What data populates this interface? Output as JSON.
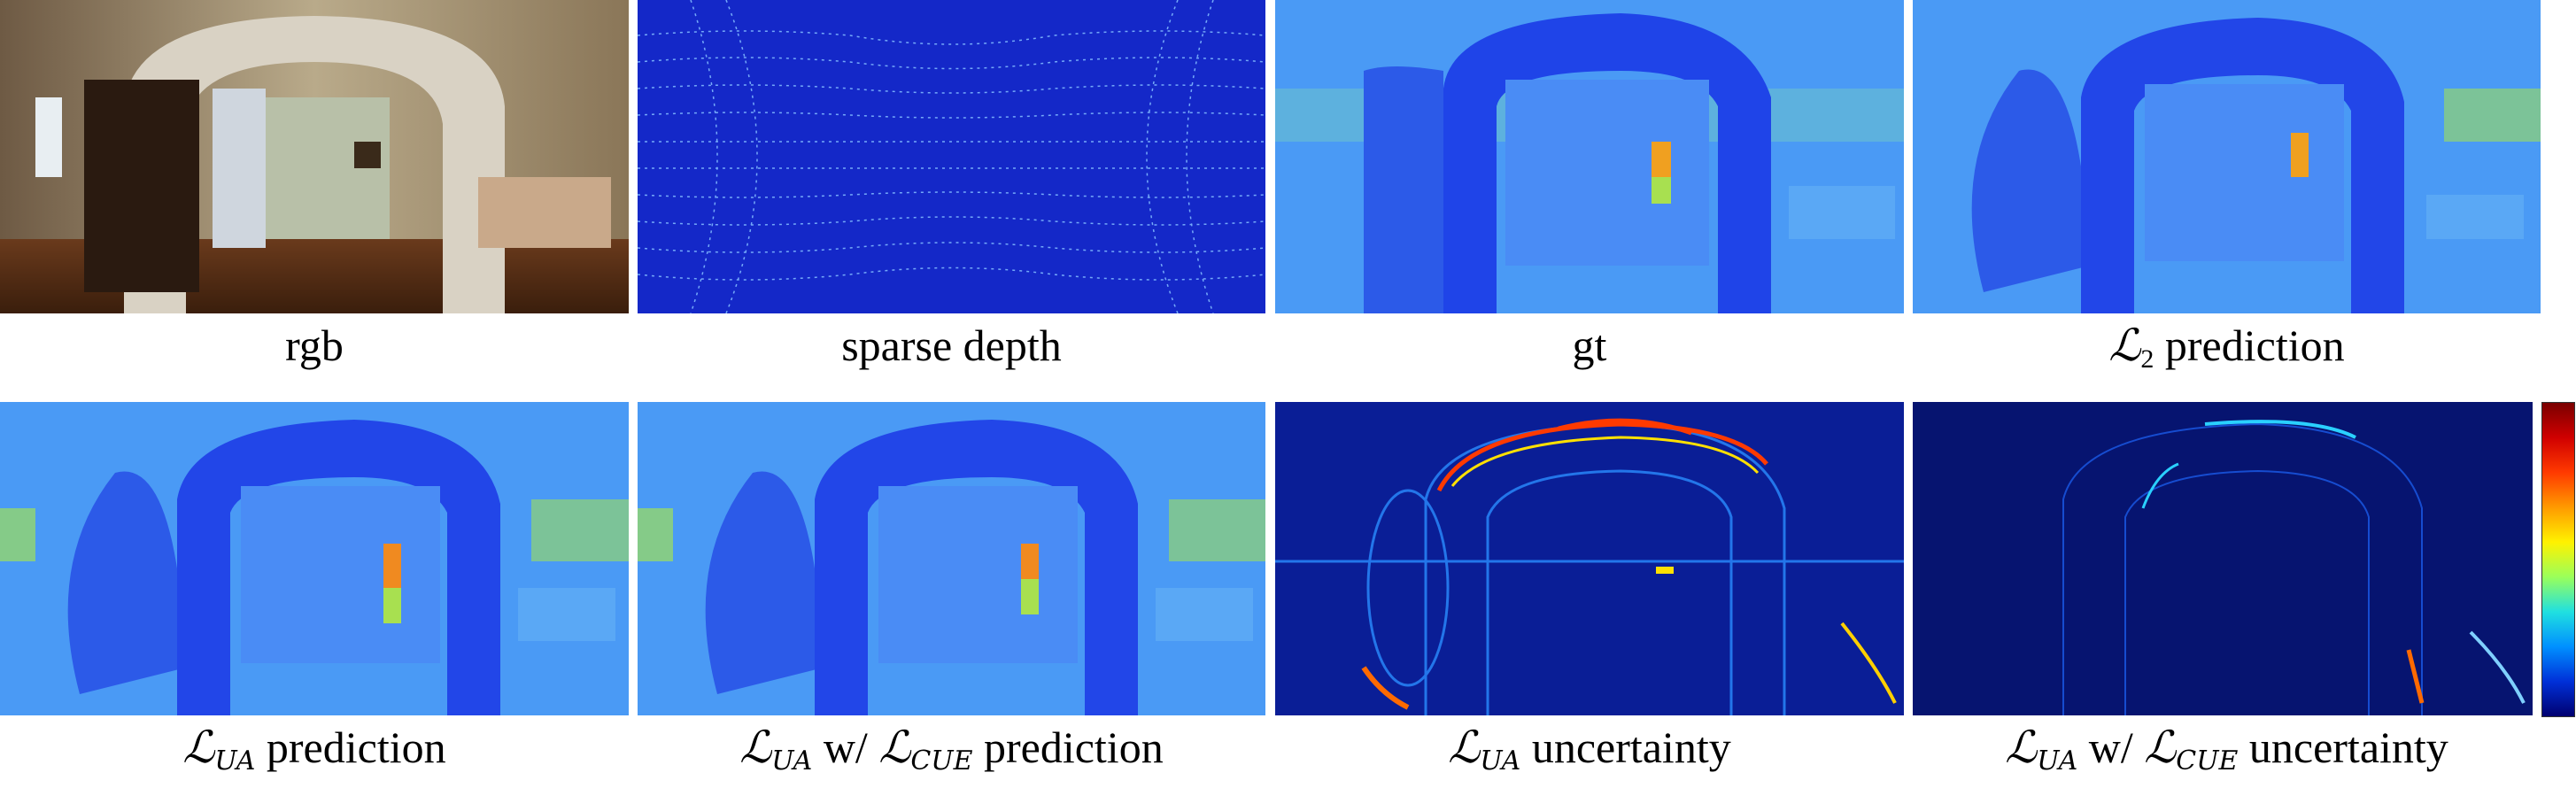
{
  "panels": [
    {
      "id": "rgb",
      "caption": "rgb"
    },
    {
      "id": "sparse",
      "caption": "sparse depth"
    },
    {
      "id": "gt",
      "caption": "gt"
    },
    {
      "id": "l2",
      "caption_prefix": "ℒ",
      "caption_sub": "2",
      "caption_suffix": " prediction"
    },
    {
      "id": "ua",
      "caption_prefix": "ℒ",
      "caption_sub": "UA",
      "caption_suffix": " prediction"
    },
    {
      "id": "uacue",
      "caption_prefix": "ℒ",
      "caption_sub": "UA",
      "caption_mid": " w/ ",
      "caption_prefix2": "ℒ",
      "caption_sub2": "CUE",
      "caption_suffix": " prediction"
    },
    {
      "id": "uaunc",
      "caption_prefix": "ℒ",
      "caption_sub": "UA",
      "caption_suffix": " uncertainty"
    },
    {
      "id": "uacueunc",
      "caption_prefix": "ℒ",
      "caption_sub": "UA",
      "caption_mid": " w/ ",
      "caption_prefix2": "ℒ",
      "caption_sub2": "CUE",
      "caption_suffix": " uncertainty"
    }
  ],
  "colors": {
    "depth_far": "#3d8cf5",
    "depth_near": "#2a4fe0",
    "depth_arch": "#1f44e8",
    "depth_bright": "#9ee05a",
    "depth_hot": "#f08a20",
    "unc_bg": "#0a1a8a",
    "unc_hot": "#ff2a00"
  }
}
